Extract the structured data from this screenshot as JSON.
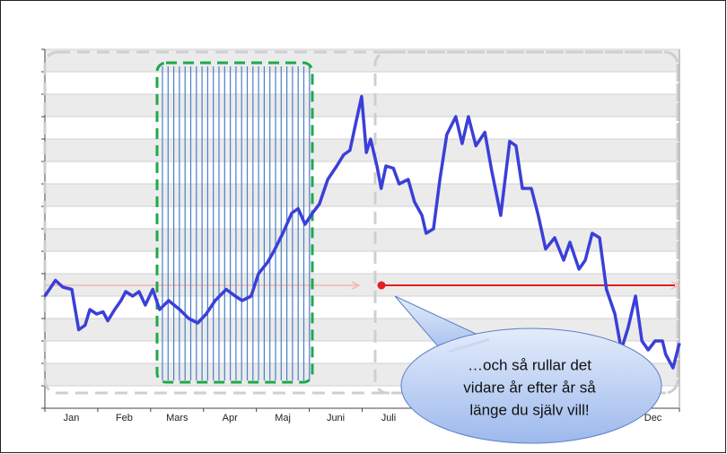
{
  "chart_data": {
    "type": "line",
    "categories": [
      "Jan",
      "Feb",
      "Mars",
      "Apr",
      "Maj",
      "Juni",
      "Juli",
      null,
      null,
      null,
      null,
      "Dec"
    ],
    "x": [
      0,
      0.2,
      0.34,
      0.51,
      0.64,
      0.76,
      0.85,
      0.98,
      1.1,
      1.19,
      1.32,
      1.44,
      1.53,
      1.66,
      1.78,
      1.9,
      2.04,
      2.17,
      2.34,
      2.55,
      2.72,
      2.89,
      3.05,
      3.22,
      3.43,
      3.6,
      3.73,
      3.9,
      4.04,
      4.21,
      4.33,
      4.5,
      4.67,
      4.79,
      4.92,
      5.06,
      5.19,
      5.35,
      5.52,
      5.65,
      5.77,
      5.87,
      5.99,
      6.08,
      6.16,
      6.28,
      6.36,
      6.45,
      6.59,
      6.7,
      6.87,
      6.99,
      7.13,
      7.21,
      7.35,
      7.47,
      7.6,
      7.77,
      7.89,
      8.01,
      8.15,
      8.32,
      8.45,
      8.62,
      8.79,
      8.91,
      9.03,
      9.2,
      9.33,
      9.47,
      9.64,
      9.81,
      9.93,
      10.1,
      10.22,
      10.35,
      10.49,
      10.62,
      10.78,
      10.9,
      11.03,
      11.17,
      11.29,
      11.41,
      11.54,
      11.68,
      11.74,
      11.88,
      12
    ],
    "series": [
      {
        "color": "#3b3fd8",
        "values": [
          5.0,
          5.7,
          5.4,
          5.3,
          3.5,
          3.7,
          4.4,
          4.2,
          4.3,
          3.9,
          4.4,
          4.8,
          5.2,
          5.0,
          5.2,
          4.6,
          5.3,
          4.4,
          4.8,
          4.4,
          4.0,
          3.8,
          4.2,
          4.8,
          5.3,
          5.0,
          4.8,
          5.0,
          6.0,
          6.5,
          7.0,
          7.8,
          8.7,
          8.9,
          8.2,
          8.7,
          9.1,
          10.2,
          10.8,
          11.3,
          11.5,
          12.6,
          13.9,
          11.4,
          12.0,
          10.8,
          9.8,
          10.8,
          10.7,
          10.0,
          10.2,
          9.2,
          8.6,
          7.8,
          8.0,
          10.2,
          12.2,
          13.0,
          11.8,
          13.0,
          11.7,
          12.3,
          10.6,
          8.6,
          11.9,
          11.7,
          9.8,
          9.8,
          8.6,
          7.1,
          7.6,
          6.6,
          7.4,
          6.2,
          6.6,
          7.8,
          7.6,
          5.3,
          4.2,
          2.6,
          3.6,
          5.0,
          3.0,
          2.6,
          3.0,
          3.0,
          2.4,
          1.8,
          2.9
        ]
      }
    ],
    "xlim": [
      0,
      12
    ],
    "ylim": [
      0,
      16
    ],
    "yticks": [
      0,
      1,
      2,
      3,
      4,
      5,
      6,
      7,
      8,
      9,
      10,
      11,
      12,
      13,
      14,
      15,
      16
    ],
    "grid": true,
    "callout": [
      "…och så rullar det",
      "vidare år efter år så",
      "länge du själv vill!"
    ]
  }
}
